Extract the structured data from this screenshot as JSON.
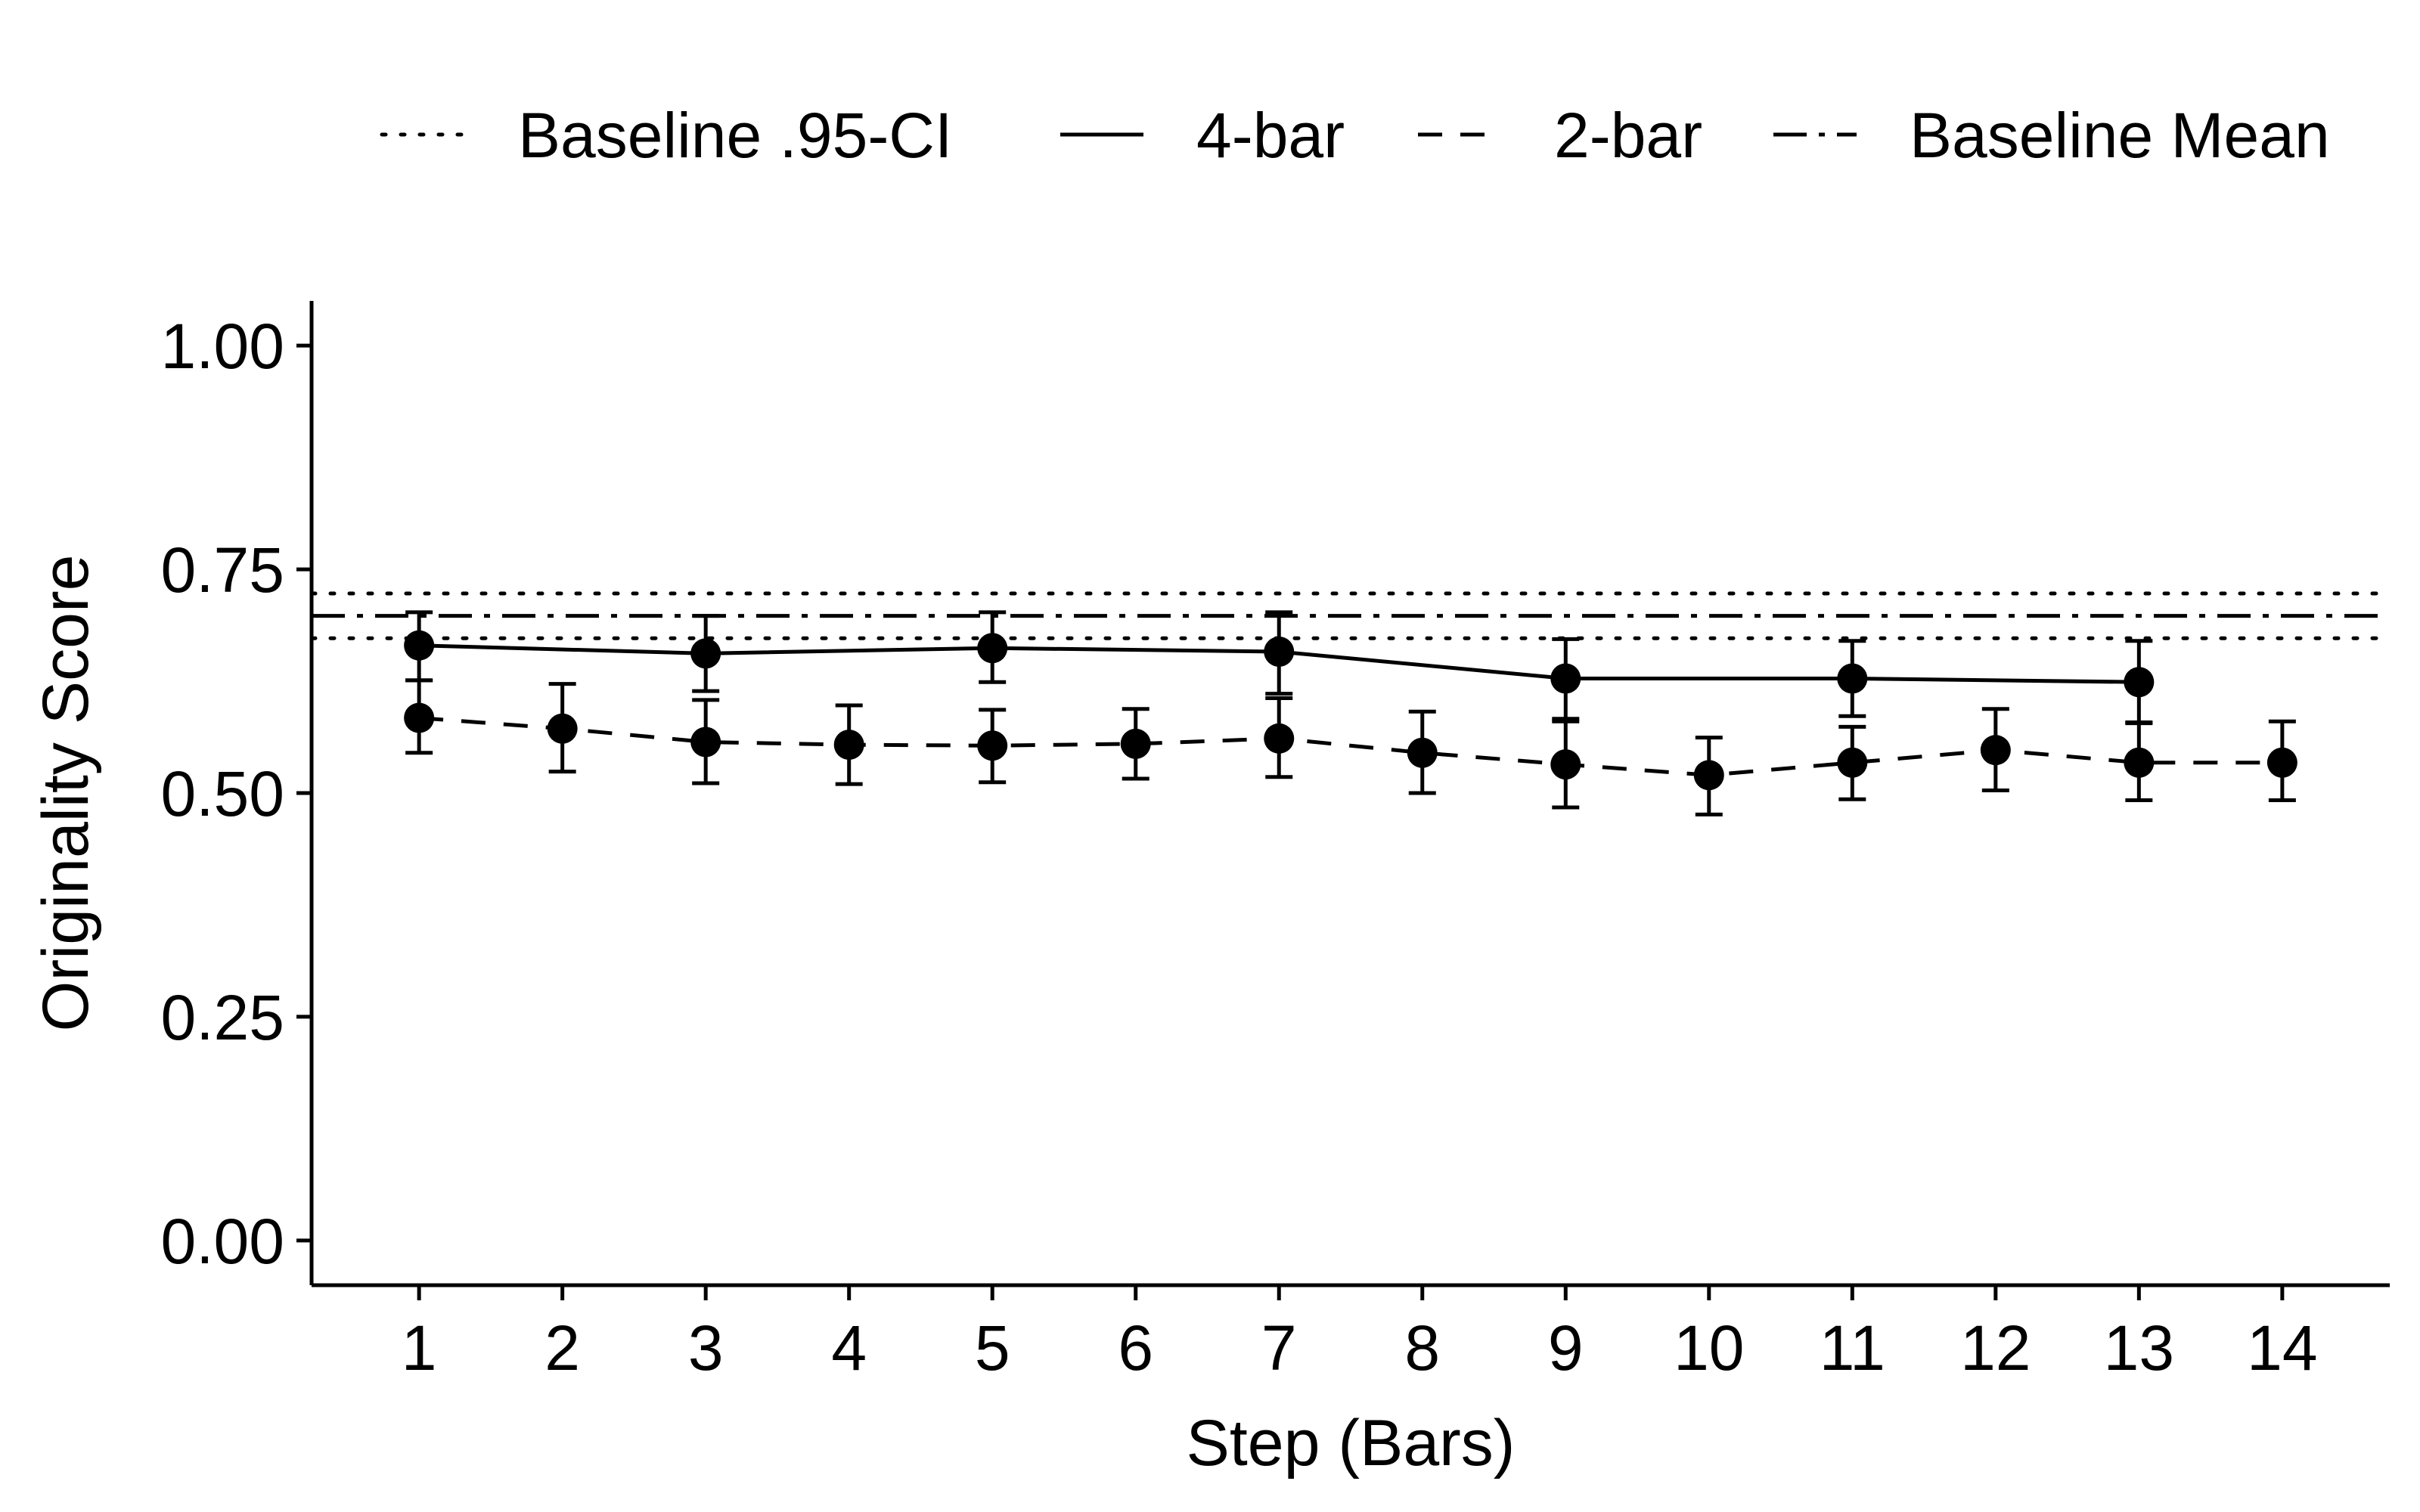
{
  "chart_data": {
    "type": "line",
    "title": "",
    "xlabel": "Step (Bars)",
    "ylabel": "Originality Score",
    "xlim": [
      0.25,
      14.75
    ],
    "ylim": [
      -0.05,
      1.05
    ],
    "x_ticks": [
      1,
      2,
      3,
      4,
      5,
      6,
      7,
      8,
      9,
      10,
      11,
      12,
      13,
      14
    ],
    "y_ticks": [
      0.0,
      0.25,
      0.5,
      0.75,
      1.0
    ],
    "y_tick_labels": [
      "0.00",
      "0.25",
      "0.50",
      "0.75",
      "1.00"
    ],
    "grid": false,
    "legend_position": "top",
    "legend": [
      {
        "label": "Baseline .95-CI",
        "linetype": "dotted"
      },
      {
        "label": "4-bar",
        "linetype": "solid"
      },
      {
        "label": "2-bar",
        "linetype": "dashed"
      },
      {
        "label": "Baseline Mean",
        "linetype": "dashdot"
      }
    ],
    "reference_lines": {
      "baseline_mean": 0.698,
      "baseline_ci": [
        0.673,
        0.723
      ]
    },
    "series": [
      {
        "name": "4-bar",
        "linetype": "solid",
        "x": [
          1,
          3,
          5,
          7,
          9,
          11,
          13
        ],
        "values": [
          0.665,
          0.656,
          0.662,
          0.658,
          0.628,
          0.628,
          0.624
        ],
        "lower": [
          0.626,
          0.614,
          0.624,
          0.611,
          0.583,
          0.586,
          0.579
        ],
        "upper": [
          0.702,
          0.698,
          0.702,
          0.702,
          0.672,
          0.67,
          0.67
        ]
      },
      {
        "name": "2-bar",
        "linetype": "dashed",
        "x": [
          1,
          2,
          3,
          4,
          5,
          6,
          7,
          8,
          9,
          10,
          11,
          12,
          13,
          14
        ],
        "values": [
          0.584,
          0.572,
          0.557,
          0.554,
          0.553,
          0.555,
          0.561,
          0.545,
          0.532,
          0.52,
          0.534,
          0.548,
          0.534,
          0.534
        ],
        "lower": [
          0.545,
          0.524,
          0.511,
          0.51,
          0.512,
          0.516,
          0.518,
          0.5,
          0.484,
          0.476,
          0.493,
          0.503,
          0.492,
          0.492
        ],
        "upper": [
          0.626,
          0.622,
          0.604,
          0.598,
          0.593,
          0.594,
          0.606,
          0.591,
          0.58,
          0.562,
          0.574,
          0.594,
          0.578,
          0.58
        ]
      }
    ]
  }
}
